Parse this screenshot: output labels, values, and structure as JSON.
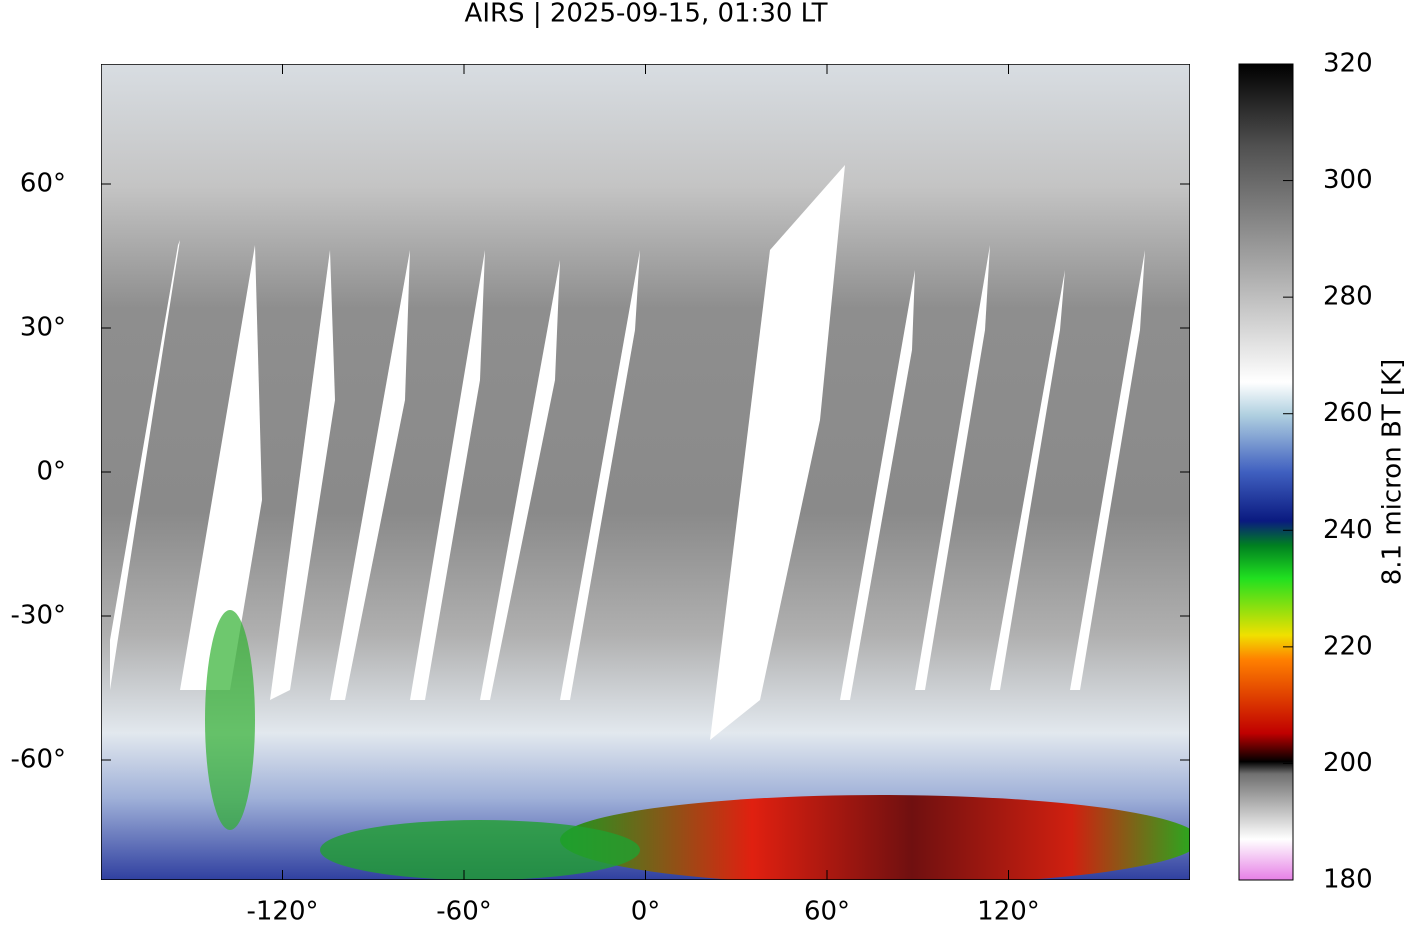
{
  "chart_data": {
    "type": "map",
    "title": "AIRS | 2025-09-15, 01:30 LT",
    "xlim": [
      -180,
      180
    ],
    "ylim": [
      -85,
      85
    ],
    "xticks": [
      {
        "value": -120,
        "label": "-120°"
      },
      {
        "value": -60,
        "label": "-60°"
      },
      {
        "value": 0,
        "label": "0°"
      },
      {
        "value": 60,
        "label": "60°"
      },
      {
        "value": 120,
        "label": "120°"
      }
    ],
    "yticks": [
      {
        "value": 60,
        "label": "60°"
      },
      {
        "value": 30,
        "label": "30°"
      },
      {
        "value": 0,
        "label": "0°"
      },
      {
        "value": -30,
        "label": "-30°"
      },
      {
        "value": -60,
        "label": "-60°"
      }
    ],
    "colorbar": {
      "label": "8.1 micron BT [K]",
      "lim": [
        180,
        320
      ],
      "ticks": [
        180,
        200,
        220,
        240,
        260,
        280,
        300,
        320
      ]
    }
  }
}
